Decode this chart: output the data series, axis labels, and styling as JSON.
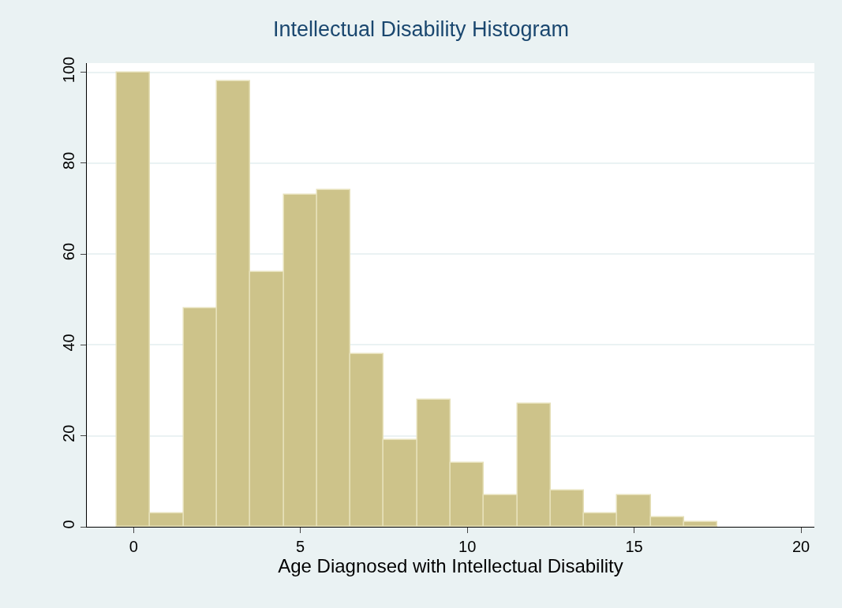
{
  "chart_data": {
    "type": "histogram",
    "title": "Intellectual Disability Histogram",
    "xlabel": "Age Diagnosed with Intellectual Disability",
    "bins": [
      -0.5,
      0.5,
      1.5,
      2.5,
      3.5,
      4.5,
      5.5,
      6.5,
      7.5,
      8.5,
      9.5,
      10.5,
      11.5,
      12.5,
      13.5,
      14.5,
      15.5,
      16.5,
      17.5
    ],
    "values": [
      100,
      3,
      48,
      98,
      56,
      73,
      74,
      38,
      19,
      28,
      14,
      7,
      27,
      8,
      3,
      7,
      2,
      1
    ],
    "color": "#cdc38a",
    "xlim": [
      -1.4,
      20.4
    ],
    "xticks": [
      0,
      5,
      10,
      15,
      20
    ],
    "ylim": [
      0,
      102
    ],
    "yticks": [
      0,
      20,
      40,
      60,
      80,
      100
    ],
    "grid": "y"
  }
}
